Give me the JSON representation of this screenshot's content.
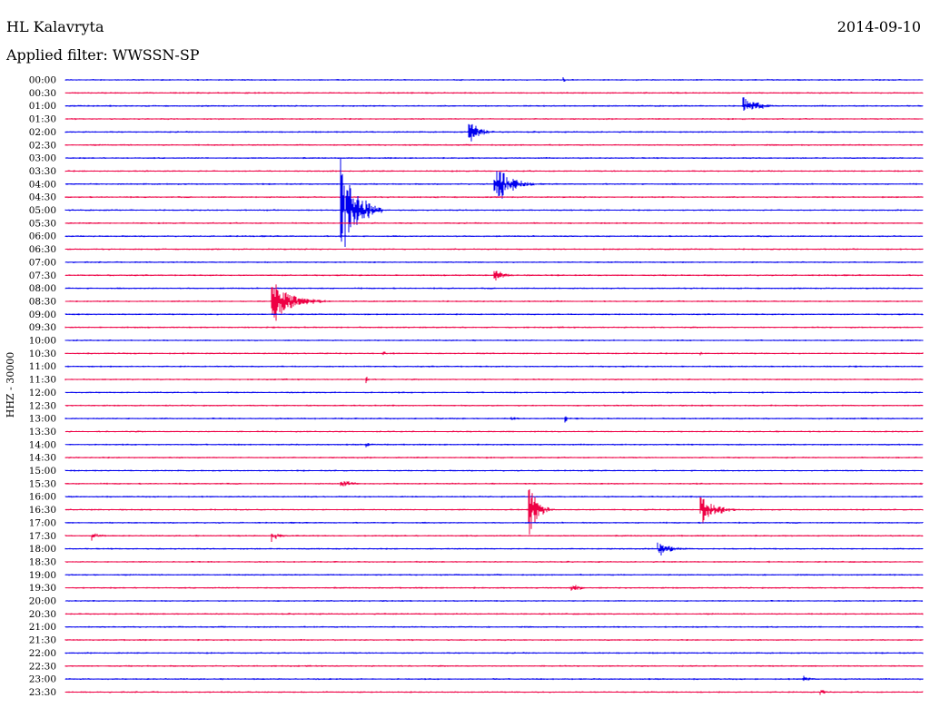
{
  "header": {
    "station": "HL Kalavryta",
    "date": "2014-09-10",
    "filter_label": "Applied filter: WWSSN-SP"
  },
  "colors": {
    "blue": "#0000ee",
    "red": "#ee0044"
  },
  "chart_data": {
    "type": "line",
    "channel_label": "HHZ - 30000",
    "y_tick_labels": [
      "00:00",
      "00:30",
      "01:00",
      "01:30",
      "02:00",
      "02:30",
      "03:00",
      "03:30",
      "04:00",
      "04:30",
      "05:00",
      "05:30",
      "06:00",
      "06:30",
      "07:00",
      "07:30",
      "08:00",
      "08:30",
      "09:00",
      "09:30",
      "10:00",
      "10:30",
      "11:00",
      "11:30",
      "12:00",
      "12:30",
      "13:00",
      "13:30",
      "14:00",
      "14:30",
      "15:00",
      "15:30",
      "16:00",
      "16:30",
      "17:00",
      "17:30",
      "18:00",
      "18:30",
      "19:00",
      "19:30",
      "20:00",
      "20:30",
      "21:00",
      "21:30",
      "22:00",
      "22:30",
      "23:00",
      "23:30"
    ],
    "trace_colors": [
      "blue",
      "red"
    ],
    "events": [
      {
        "row": 0,
        "pos": 0.58,
        "amp": 4,
        "dur": 0.02
      },
      {
        "row": 2,
        "pos": 0.79,
        "amp": 14,
        "dur": 0.05
      },
      {
        "row": 4,
        "pos": 0.47,
        "amp": 16,
        "dur": 0.04
      },
      {
        "row": 8,
        "pos": 0.5,
        "amp": 34,
        "dur": 0.05
      },
      {
        "row": 10,
        "pos": 0.32,
        "amp": 80,
        "dur": 0.05
      },
      {
        "row": 15,
        "pos": 0.5,
        "amp": 8,
        "dur": 0.04
      },
      {
        "row": 17,
        "pos": 0.24,
        "amp": 30,
        "dur": 0.07
      },
      {
        "row": 21,
        "pos": 0.37,
        "amp": 3,
        "dur": 0.02
      },
      {
        "row": 21,
        "pos": 0.74,
        "amp": 3,
        "dur": 0.02
      },
      {
        "row": 23,
        "pos": 0.35,
        "amp": 7,
        "dur": 0.01
      },
      {
        "row": 26,
        "pos": 0.58,
        "amp": 15,
        "dur": 0.01
      },
      {
        "row": 26,
        "pos": 0.52,
        "amp": 3,
        "dur": 0.03
      },
      {
        "row": 28,
        "pos": 0.35,
        "amp": 4,
        "dur": 0.03
      },
      {
        "row": 31,
        "pos": 0.32,
        "amp": 7,
        "dur": 0.04
      },
      {
        "row": 33,
        "pos": 0.54,
        "amp": 42,
        "dur": 0.03
      },
      {
        "row": 33,
        "pos": 0.74,
        "amp": 22,
        "dur": 0.05
      },
      {
        "row": 35,
        "pos": 0.03,
        "amp": 6,
        "dur": 0.03
      },
      {
        "row": 35,
        "pos": 0.24,
        "amp": 8,
        "dur": 0.03
      },
      {
        "row": 36,
        "pos": 0.69,
        "amp": 10,
        "dur": 0.05
      },
      {
        "row": 37,
        "pos": 0.82,
        "amp": 3,
        "dur": 0.01
      },
      {
        "row": 39,
        "pos": 0.59,
        "amp": 5,
        "dur": 0.04
      },
      {
        "row": 45,
        "pos": 0.22,
        "amp": 3,
        "dur": 0.01
      },
      {
        "row": 46,
        "pos": 0.86,
        "amp": 8,
        "dur": 0.02
      },
      {
        "row": 47,
        "pos": 0.88,
        "amp": 4,
        "dur": 0.03
      },
      {
        "row": 47,
        "pos": 0.02,
        "amp": 4,
        "dur": 0.01
      }
    ]
  }
}
